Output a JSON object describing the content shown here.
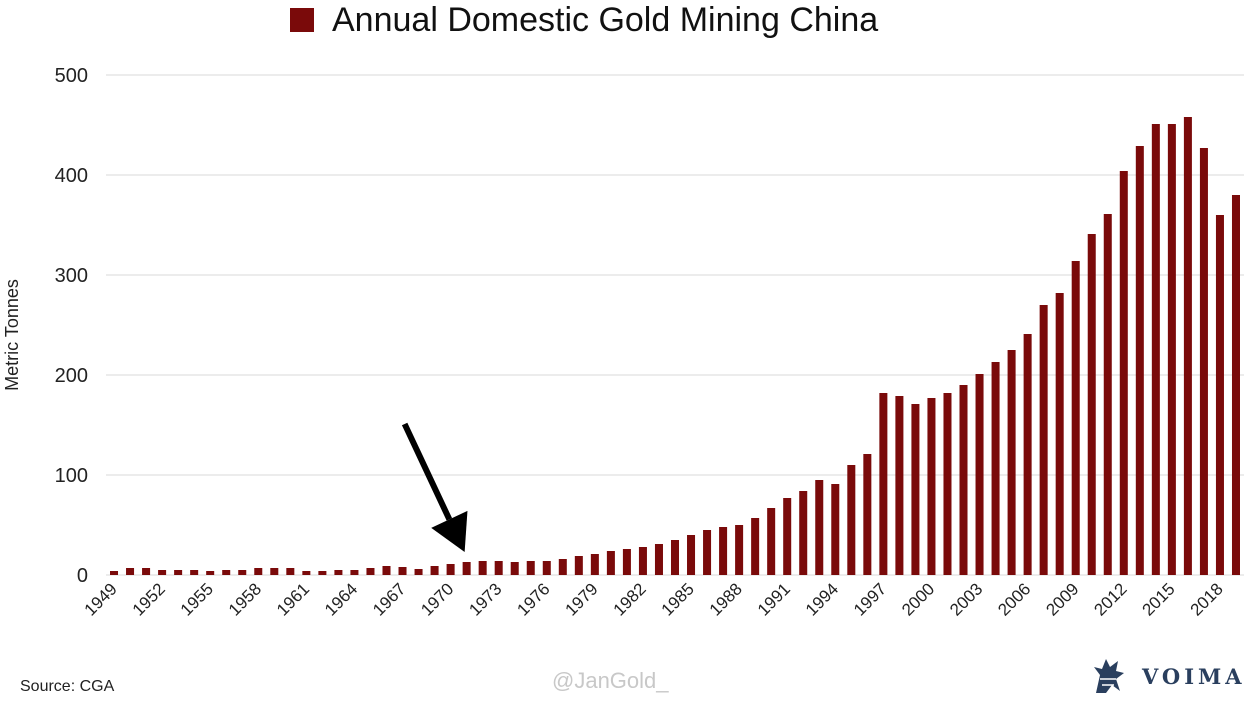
{
  "chart_data": {
    "type": "bar",
    "title": "Annual Domestic Gold Mining China",
    "legend": [
      "Annual Domestic Gold Mining China"
    ],
    "legend_position": "top-center",
    "ylabel": "Metric Tonnes",
    "xlabel": "",
    "ylim": [
      0,
      500
    ],
    "yticks": [
      0,
      100,
      200,
      300,
      400,
      500
    ],
    "grid": true,
    "bar_color": "#7a0a0a",
    "categories": [
      "1949",
      "1950",
      "1951",
      "1952",
      "1953",
      "1954",
      "1955",
      "1956",
      "1957",
      "1958",
      "1959",
      "1960",
      "1961",
      "1962",
      "1963",
      "1964",
      "1965",
      "1966",
      "1967",
      "1968",
      "1969",
      "1970",
      "1971",
      "1972",
      "1973",
      "1974",
      "1975",
      "1976",
      "1977",
      "1978",
      "1979",
      "1980",
      "1981",
      "1982",
      "1983",
      "1984",
      "1985",
      "1986",
      "1987",
      "1988",
      "1989",
      "1990",
      "1991",
      "1992",
      "1993",
      "1994",
      "1995",
      "1996",
      "1997",
      "1998",
      "1999",
      "2000",
      "2001",
      "2002",
      "2003",
      "2004",
      "2005",
      "2006",
      "2007",
      "2008",
      "2009",
      "2010",
      "2011",
      "2012",
      "2013",
      "2014",
      "2015",
      "2016",
      "2017",
      "2018",
      "2019"
    ],
    "tick_labels": [
      "1949",
      "1952",
      "1955",
      "1958",
      "1961",
      "1964",
      "1967",
      "1970",
      "1973",
      "1976",
      "1979",
      "1982",
      "1985",
      "1988",
      "1991",
      "1994",
      "1997",
      "2000",
      "2003",
      "2006",
      "2009",
      "2012",
      "2015",
      "2018"
    ],
    "values": [
      4,
      7,
      7,
      5,
      5,
      5,
      4,
      5,
      5,
      7,
      7,
      7,
      4,
      4,
      5,
      5,
      7,
      9,
      8,
      6,
      9,
      11,
      13,
      14,
      14,
      13,
      14,
      14,
      16,
      19,
      21,
      24,
      26,
      28,
      31,
      35,
      40,
      45,
      48,
      50,
      57,
      67,
      77,
      84,
      95,
      91,
      110,
      121,
      182,
      179,
      171,
      177,
      182,
      190,
      201,
      213,
      225,
      241,
      270,
      282,
      314,
      341,
      361,
      404,
      429,
      451,
      451,
      458,
      427,
      360,
      380
    ],
    "annotations": [
      {
        "type": "arrow",
        "points_to": "1971"
      }
    ]
  },
  "footer": {
    "source": "Source: CGA",
    "watermark": "@JanGold_",
    "brand": "VOIMA"
  }
}
